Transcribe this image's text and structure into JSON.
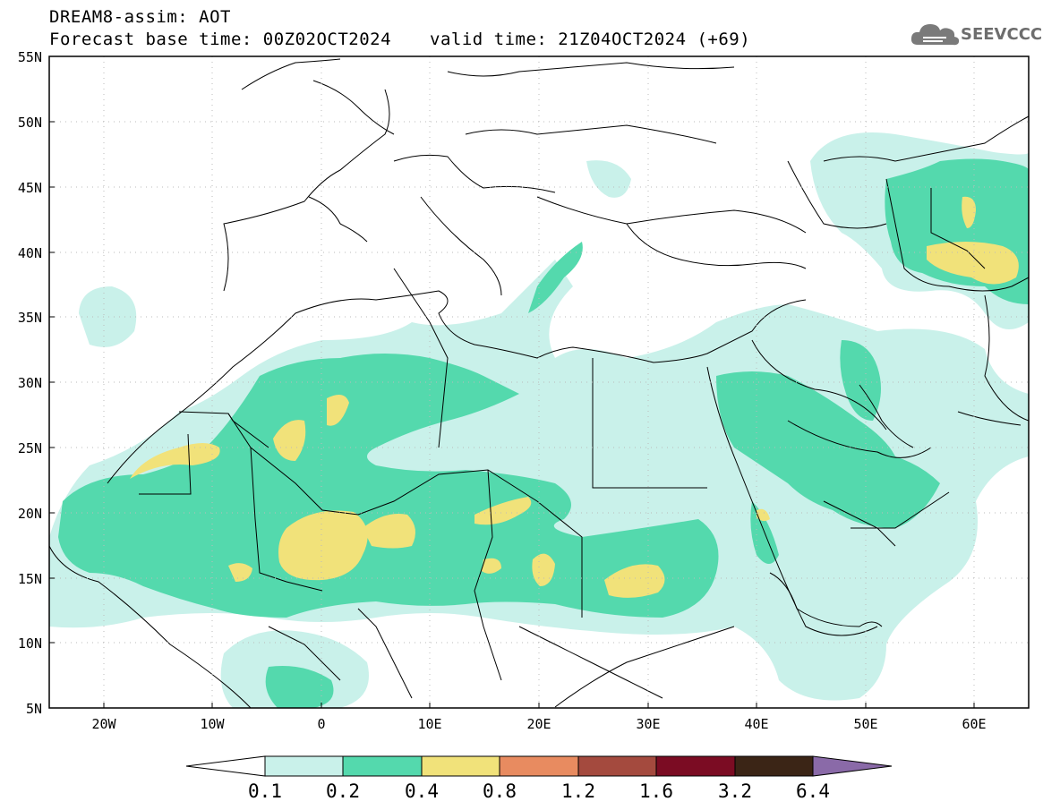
{
  "header": {
    "model_title": "DREAM8-assim: AOT",
    "base_time": "Forecast base time: 00Z02OCT2024",
    "valid_time": "valid time: 21Z04OCT2024 (+69)"
  },
  "logo": {
    "text": "SEEVCCC",
    "icon": "cloud-icon"
  },
  "map": {
    "variable": "AOT",
    "lat_labels": [
      "55N",
      "50N",
      "45N",
      "40N",
      "35N",
      "30N",
      "25N",
      "20N",
      "15N",
      "10N",
      "5N"
    ],
    "lon_labels": [
      "20W",
      "10W",
      "0",
      "10E",
      "20E",
      "30E",
      "40E",
      "50E",
      "60E"
    ]
  },
  "colorbar": {
    "levels": [
      "0.1",
      "0.2",
      "0.4",
      "0.8",
      "1.2",
      "1.6",
      "3.2",
      "6.4"
    ],
    "colors": [
      "#c9f1ea",
      "#54d9ad",
      "#f1e27a",
      "#e88b60",
      "#a44a3e",
      "#7b0c23",
      "#3b2516",
      "#8a6aa8"
    ]
  }
}
